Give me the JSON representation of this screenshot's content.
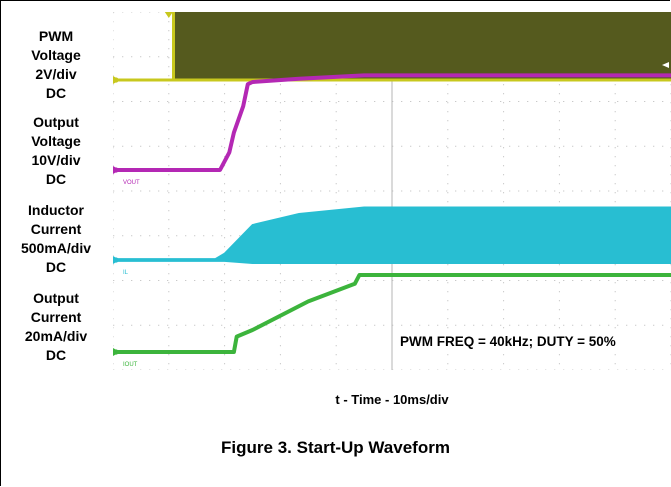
{
  "chart_data": {
    "type": "line",
    "x_unit": "ms",
    "xlim": [
      0,
      60
    ],
    "xlabel": "t - Time - 10ms/div",
    "annotation": "PWM FREQ = 40kHz; DUTY = 50%",
    "caption": "Figure 3. Start-Up Waveform",
    "series": [
      {
        "key": "pwm",
        "label_lines": [
          "PWM",
          "Voltage",
          "2V/div",
          "DC"
        ],
        "marker": "",
        "color": "#c8c81e",
        "fill": "#555a1e",
        "ylim": [
          0,
          10
        ],
        "points": [
          [
            0,
            0
          ],
          [
            6.5,
            0
          ],
          [
            6.5,
            3.3
          ],
          [
            60,
            3.3
          ]
        ]
      },
      {
        "key": "vout",
        "label_lines": [
          "Output",
          "Voltage",
          "10V/div",
          "DC"
        ],
        "marker": "VOUT",
        "color": "#b428b4",
        "ylim": [
          0,
          10
        ],
        "points": [
          [
            0,
            0
          ],
          [
            11.5,
            0
          ],
          [
            12.5,
            0.8
          ],
          [
            13,
            1.7
          ],
          [
            14,
            2.9
          ],
          [
            14.5,
            3.9
          ],
          [
            15,
            4.0
          ],
          [
            20,
            4.15
          ],
          [
            27,
            4.3
          ],
          [
            60,
            4.3
          ]
        ]
      },
      {
        "key": "il",
        "label_lines": [
          "Inductor",
          "Current",
          "500mA/div",
          "DC"
        ],
        "marker": "IL",
        "color": "#28bed2",
        "envelope": true,
        "ylim": [
          0,
          10
        ],
        "upper": [
          [
            0,
            0.05
          ],
          [
            11,
            0.05
          ],
          [
            12,
            0.3
          ],
          [
            15,
            1.6
          ],
          [
            20,
            2.1
          ],
          [
            27,
            2.4
          ],
          [
            60,
            2.4
          ]
        ],
        "lower": [
          [
            0,
            -0.05
          ],
          [
            11,
            -0.05
          ],
          [
            12,
            -0.05
          ],
          [
            15,
            -0.15
          ],
          [
            60,
            -0.15
          ]
        ]
      },
      {
        "key": "iout",
        "label_lines": [
          "Output",
          "Current",
          "20mA/div",
          "DC"
        ],
        "marker": "IOUT",
        "color": "#3cb43c",
        "ylim": [
          0,
          10
        ],
        "points": [
          [
            0,
            0
          ],
          [
            13,
            0
          ],
          [
            13.3,
            0.7
          ],
          [
            15,
            1.0
          ],
          [
            21,
            2.3
          ],
          [
            26,
            3.1
          ],
          [
            26.5,
            3.5
          ],
          [
            60,
            3.5
          ]
        ]
      }
    ]
  }
}
